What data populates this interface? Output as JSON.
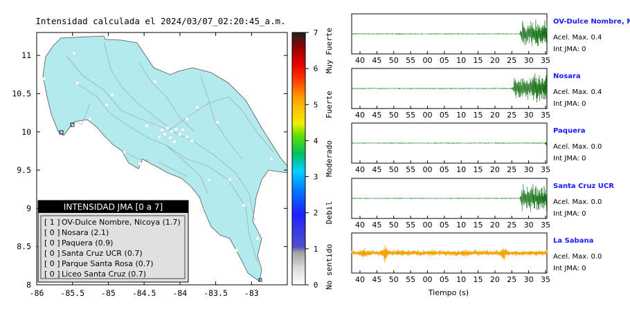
{
  "chart_data": [
    {
      "type": "heatmap",
      "title": "Intensidad calculada el 2024/03/07_02:20:45_a.m.",
      "xlim": [
        -86,
        -82.5
      ],
      "ylim": [
        8,
        11.3
      ],
      "xticks": [
        "-86",
        "-85.5",
        "-85",
        "-84.5",
        "-84",
        "-83.5",
        "-83"
      ],
      "yticks": [
        "8",
        "8.5",
        "9",
        "9.5",
        "10",
        "10.5",
        "11"
      ],
      "colorbar": {
        "range": [
          0,
          7
        ],
        "ticks": [
          "0",
          "1",
          "2",
          "3",
          "4",
          "5",
          "6",
          "7"
        ],
        "labels": [
          "No sentido",
          "Debil",
          "Moderado",
          "Fuerte",
          "Muy Fuerte"
        ]
      },
      "fill_color": "#b2eaee",
      "legend": {
        "title": "INTENSIDAD JMA [0 a 7]",
        "items": [
          {
            "code": "[ 1 ]",
            "label": "OV-Dulce Nombre, Nicoya (1.7)"
          },
          {
            "code": "[ 0 ]",
            "label": "Nosara (2.1)"
          },
          {
            "code": "[ 0 ]",
            "label": "Paquera (0.9)"
          },
          {
            "code": "[ 0 ]",
            "label": "Santa Cruz UCR (0.7)"
          },
          {
            "code": "[ 0 ]",
            "label": "Parque Santa Rosa (0.7)"
          },
          {
            "code": "[ 0 ]",
            "label": "Liceo Santa Cruz (0.7)"
          }
        ]
      }
    },
    {
      "type": "line",
      "xlabel": "Tiempo (s)",
      "x_ticks": [
        "40",
        "45",
        "50",
        "55",
        "00",
        "05",
        "10",
        "15",
        "20",
        "25",
        "30",
        "35"
      ],
      "stations": [
        {
          "name": "OV-Dulce Nombre, Nicoya",
          "accel": "Acel. Max. 0.4",
          "jma": "Int JMA: 0",
          "color": "#006400",
          "burst_start": 0.86
        },
        {
          "name": "Nosara",
          "accel": "Acel. Max. 0.4",
          "jma": "Int JMA: 0",
          "color": "#006400",
          "burst_start": 0.82
        },
        {
          "name": "Paquera",
          "accel": "Acel. Max. 0.0",
          "jma": "Int JMA: 0",
          "color": "#006400",
          "burst_start": 0.985
        },
        {
          "name": "Santa Cruz UCR",
          "accel": "Acel. Max. 0.0",
          "jma": "Int JMA: 0",
          "color": "#006400",
          "burst_start": 0.86
        },
        {
          "name": "La Sabana",
          "accel": "Acel. Max. 0.0",
          "jma": "Int JMA: 0",
          "color": "#f5a300",
          "burst_start": 0
        }
      ]
    }
  ]
}
